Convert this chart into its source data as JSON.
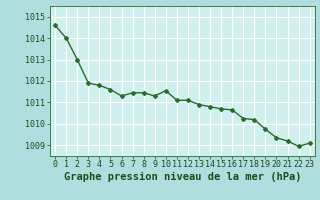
{
  "x": [
    0,
    1,
    2,
    3,
    4,
    5,
    6,
    7,
    8,
    9,
    10,
    11,
    12,
    13,
    14,
    15,
    16,
    17,
    18,
    19,
    20,
    21,
    22,
    23
  ],
  "y": [
    1014.6,
    1014.0,
    1013.0,
    1011.9,
    1011.8,
    1011.6,
    1011.3,
    1011.45,
    1011.45,
    1011.3,
    1011.55,
    1011.1,
    1011.1,
    1010.9,
    1010.8,
    1010.7,
    1010.65,
    1010.25,
    1010.2,
    1009.75,
    1009.35,
    1009.2,
    1008.95,
    1009.1
  ],
  "ylim": [
    1008.5,
    1015.5
  ],
  "yticks": [
    1009,
    1010,
    1011,
    1012,
    1013,
    1014,
    1015
  ],
  "xlim": [
    -0.5,
    23.5
  ],
  "xticks": [
    0,
    1,
    2,
    3,
    4,
    5,
    6,
    7,
    8,
    9,
    10,
    11,
    12,
    13,
    14,
    15,
    16,
    17,
    18,
    19,
    20,
    21,
    22,
    23
  ],
  "xlabel": "Graphe pression niveau de la mer (hPa)",
  "line_color": "#2d6a2d",
  "marker": "D",
  "marker_size": 2.0,
  "line_width": 1.0,
  "bg_color": "#b0dede",
  "plot_bg_color": "#cff0ee",
  "grid_color": "#ffffff",
  "tick_label_color": "#1a4d1a",
  "xlabel_color": "#1a4d1a",
  "xlabel_fontsize": 7.5,
  "tick_fontsize": 6.0
}
